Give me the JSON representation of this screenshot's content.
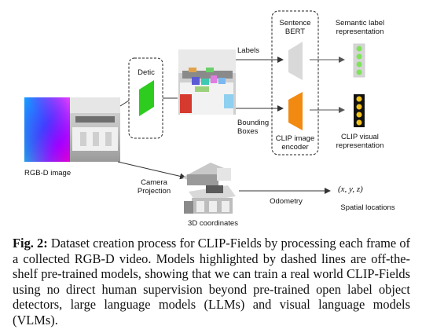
{
  "figure": {
    "rgbd_label": "RGB-D image",
    "detic_label": "Detic",
    "labels_label": "Labels",
    "bounding_boxes_label": "Bounding\nBoxes",
    "sentence_bert_label": "Sentence\nBERT",
    "clip_encoder_label": "CLIP image\nencoder",
    "semantic_label": "Semantic label\nrepresentation",
    "clip_visual_label": "CLIP visual\nrepresentation",
    "camera_projection_label": "Camera\nProjection",
    "coords_label": "3D coordinates",
    "odometry_label": "Odometry",
    "xyz_label": "(x, y, z)",
    "spatial_label": "Spatial locations",
    "colors": {
      "detic": "#2ecc1f",
      "sentence_bert": "#d9d9d9",
      "clip_encoder": "#f28a12",
      "semantic_dots": "#7ee35a",
      "clip_dots": "#f2c21c",
      "arrow": "#333333"
    }
  },
  "caption": {
    "prefix": "Fig. 2:",
    "text": " Dataset creation process for CLIP-Fields by processing each frame of a collected RGB-D video. Models highlighted by dashed lines are off-the-shelf pre-trained models, showing that we can train a real world CLIP-Fields using no direct human supervision beyond pre-trained open label object detectors, large language models (LLMs) and visual language models (VLMs)."
  }
}
